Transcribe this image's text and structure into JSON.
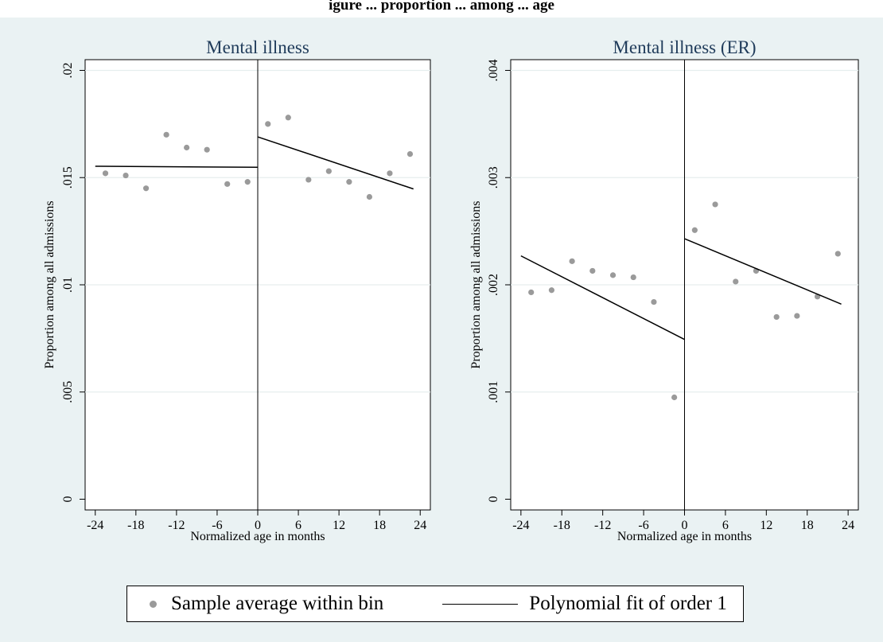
{
  "header": {
    "title_fragment": "igure  ...  proportion  ...  among  ...  age"
  },
  "legend": {
    "scatter_label": "Sample average within bin",
    "line_label": "Polynomial fit of order 1"
  },
  "colors": {
    "background": "#eaf2f3",
    "plot_area": "#ffffff",
    "points": "#9a9a9a",
    "line": "#000000",
    "title": "#1f3b5a"
  },
  "chart_data": [
    {
      "type": "scatter",
      "title": "Mental illness",
      "xlabel": "Normalized age in months",
      "ylabel": "Proportion among all admissions",
      "xlim": [
        -25.5,
        25.5
      ],
      "ylim": [
        -0.0005,
        0.0205
      ],
      "xticks": [
        -24,
        -18,
        -12,
        -6,
        0,
        6,
        12,
        18,
        24
      ],
      "yticks": [
        0,
        0.005,
        0.01,
        0.015,
        0.02
      ],
      "ytick_labels": [
        "0",
        ".005",
        ".01",
        ".015",
        ".02"
      ],
      "grid": true,
      "cutoff_x": 0,
      "series": [
        {
          "name": "Sample average within bin",
          "kind": "points",
          "x": [
            -22.5,
            -19.5,
            -16.5,
            -13.5,
            -10.5,
            -7.5,
            -4.5,
            -1.5,
            1.5,
            4.5,
            7.5,
            10.5,
            13.5,
            16.5,
            19.5,
            22.5
          ],
          "y": [
            0.0152,
            0.0151,
            0.0145,
            0.017,
            0.0164,
            0.0163,
            0.0147,
            0.0148,
            0.0175,
            0.0178,
            0.0149,
            0.0153,
            0.0148,
            0.0141,
            0.0152,
            0.0161
          ]
        },
        {
          "name": "Polynomial fit of order 1",
          "kind": "segments",
          "segments": [
            [
              [
                -24,
                0.01553
              ],
              [
                0,
                0.01548
              ]
            ],
            [
              [
                0,
                0.0169
              ],
              [
                23,
                0.01447
              ]
            ]
          ]
        }
      ]
    },
    {
      "type": "scatter",
      "title": "Mental illness (ER)",
      "xlabel": "Normalized age in months",
      "ylabel": "Proportion among all admissions",
      "xlim": [
        -25.5,
        25.5
      ],
      "ylim": [
        -0.0001,
        0.0041
      ],
      "xticks": [
        -24,
        -18,
        -12,
        -6,
        0,
        6,
        12,
        18,
        24
      ],
      "yticks": [
        0,
        0.001,
        0.002,
        0.003,
        0.004
      ],
      "ytick_labels": [
        "0",
        ".001",
        ".002",
        ".003",
        ".004"
      ],
      "grid": true,
      "cutoff_x": 0,
      "series": [
        {
          "name": "Sample average within bin",
          "kind": "points",
          "x": [
            -22.5,
            -19.5,
            -16.5,
            -13.5,
            -10.5,
            -7.5,
            -4.5,
            -1.5,
            1.5,
            4.5,
            7.5,
            10.5,
            13.5,
            16.5,
            19.5,
            22.5
          ],
          "y": [
            0.00193,
            0.00195,
            0.00222,
            0.00213,
            0.00209,
            0.00207,
            0.00184,
            0.00095,
            0.00251,
            0.00275,
            0.00203,
            0.00213,
            0.0017,
            0.00171,
            0.00189,
            0.00229
          ]
        },
        {
          "name": "Polynomial fit of order 1",
          "kind": "segments",
          "segments": [
            [
              [
                -24,
                0.00227
              ],
              [
                0,
                0.00149
              ]
            ],
            [
              [
                0,
                0.00243
              ],
              [
                23,
                0.00182
              ]
            ]
          ]
        }
      ]
    }
  ]
}
